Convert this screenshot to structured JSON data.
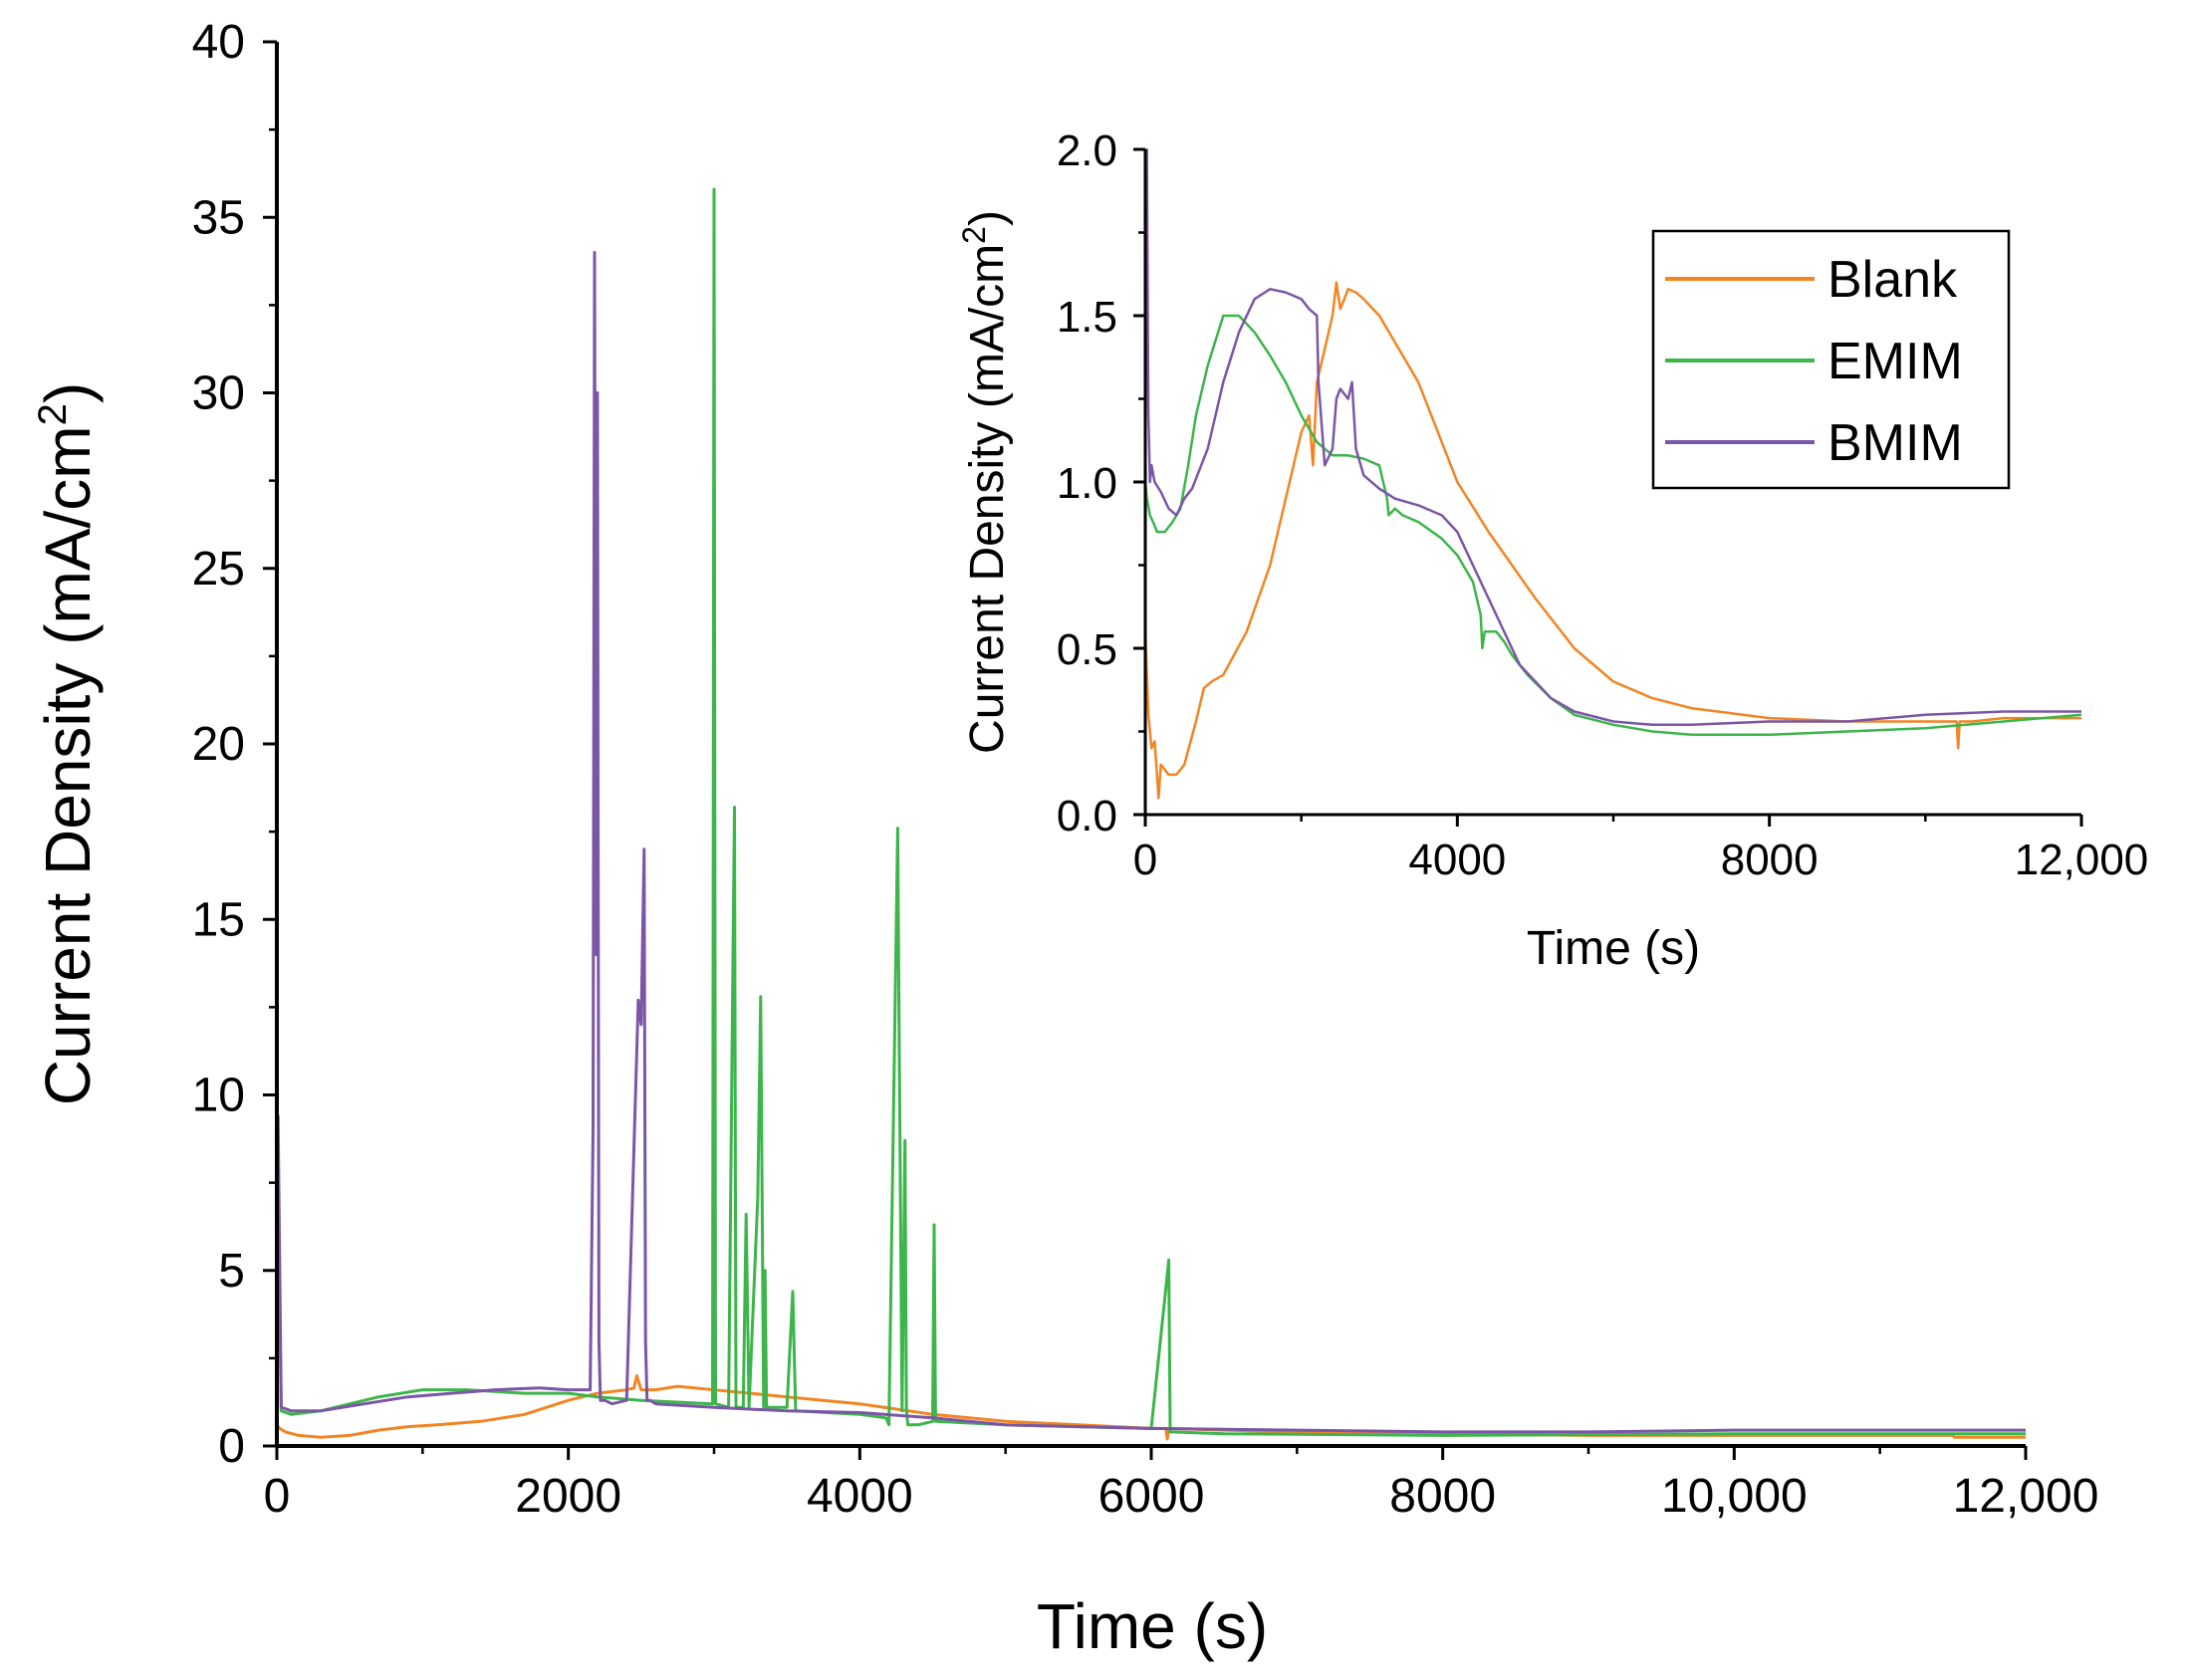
{
  "chart_data": [
    {
      "name": "main",
      "type": "line",
      "xlabel": "Time (s)",
      "ylabel": "Current Density (mA/cm",
      "ylabel_sup": "2",
      "ylabel_close": ")",
      "xlim": [
        0,
        12000
      ],
      "ylim": [
        0,
        40
      ],
      "xticks": [
        0,
        2000,
        4000,
        6000,
        8000,
        10000,
        12000
      ],
      "xtick_labels": [
        "0",
        "2000",
        "4000",
        "6000",
        "8000",
        "10,000",
        "12,000"
      ],
      "yticks": [
        0,
        5,
        10,
        15,
        20,
        25,
        30,
        35,
        40
      ],
      "ytick_labels": [
        "0",
        "5",
        "10",
        "15",
        "20",
        "25",
        "30",
        "35",
        "40"
      ],
      "series": [
        {
          "name": "Blank",
          "color": "#F28522",
          "x": [
            0,
            20,
            60,
            150,
            300,
            500,
            700,
            900,
            1100,
            1400,
            1700,
            2000,
            2200,
            2400,
            2450,
            2470,
            2500,
            2600,
            2750,
            3000,
            3500,
            4000,
            4500,
            5000,
            5500,
            6000,
            6100,
            6110,
            6120,
            6500,
            7000,
            8000,
            9000,
            10000,
            11000,
            11500,
            11510,
            12000
          ],
          "y": [
            0.6,
            0.5,
            0.4,
            0.3,
            0.25,
            0.3,
            0.45,
            0.55,
            0.6,
            0.7,
            0.9,
            1.3,
            1.5,
            1.6,
            1.65,
            2.0,
            1.6,
            1.6,
            1.7,
            1.6,
            1.4,
            1.2,
            0.9,
            0.7,
            0.6,
            0.5,
            0.5,
            0.2,
            0.5,
            0.45,
            0.4,
            0.35,
            0.3,
            0.3,
            0.3,
            0.3,
            0.25,
            0.25
          ]
        },
        {
          "name": "EMIM",
          "color": "#3CB54A",
          "x": [
            0,
            10,
            30,
            100,
            300,
            700,
            1000,
            1300,
            1700,
            2000,
            2200,
            2500,
            2990,
            3000,
            3010,
            3100,
            3140,
            3150,
            3160,
            3200,
            3220,
            3240,
            3300,
            3320,
            3340,
            3350,
            3360,
            3380,
            3500,
            3540,
            3560,
            4000,
            4180,
            4200,
            4260,
            4270,
            4290,
            4310,
            4320,
            4330,
            4400,
            4500,
            4510,
            4520,
            5000,
            6000,
            6120,
            6130,
            6140,
            6500,
            8000,
            10000,
            12000
          ],
          "y": [
            1.0,
            6.5,
            1.0,
            0.9,
            1.0,
            1.4,
            1.6,
            1.6,
            1.5,
            1.5,
            1.4,
            1.3,
            1.2,
            35.8,
            1.2,
            1.1,
            18.2,
            1.1,
            1.1,
            1.1,
            6.6,
            1.1,
            7.1,
            12.8,
            1.1,
            5.0,
            1.1,
            1.1,
            1.1,
            4.4,
            1.0,
            0.9,
            0.8,
            0.6,
            17.6,
            12.0,
            1.0,
            8.7,
            1.0,
            0.6,
            0.6,
            0.7,
            6.3,
            0.7,
            0.6,
            0.5,
            5.3,
            0.4,
            0.4,
            0.35,
            0.3,
            0.35,
            0.35
          ]
        },
        {
          "name": "BMIM",
          "color": "#7B56A6",
          "x": [
            0,
            8,
            30,
            100,
            300,
            600,
            900,
            1200,
            1500,
            1800,
            2000,
            2100,
            2150,
            2170,
            2180,
            2190,
            2200,
            2210,
            2220,
            2250,
            2300,
            2400,
            2480,
            2500,
            2520,
            2530,
            2540,
            2560,
            2600,
            3000,
            3500,
            4000,
            4500,
            5000,
            6000,
            7000,
            8000,
            9000,
            10000,
            11000,
            12000
          ],
          "y": [
            1.0,
            9.4,
            1.1,
            1.0,
            1.0,
            1.2,
            1.4,
            1.5,
            1.6,
            1.65,
            1.6,
            1.6,
            1.6,
            9.0,
            34.0,
            14.0,
            30.0,
            3.0,
            1.3,
            1.3,
            1.2,
            1.3,
            12.7,
            12.0,
            17.0,
            3.0,
            1.3,
            1.3,
            1.2,
            1.1,
            1.0,
            0.95,
            0.8,
            0.6,
            0.5,
            0.45,
            0.4,
            0.4,
            0.45,
            0.45,
            0.45
          ]
        }
      ]
    },
    {
      "name": "inset",
      "type": "line",
      "xlabel": "Time (s)",
      "ylabel": "Current Density (mA/cm",
      "ylabel_sup": "2",
      "ylabel_close": ")",
      "xlim": [
        0,
        12000
      ],
      "ylim": [
        0,
        2.0
      ],
      "xticks": [
        0,
        4000,
        8000,
        12000
      ],
      "xtick_labels": [
        "0",
        "4000",
        "8000",
        "12,000"
      ],
      "yticks": [
        0,
        0.5,
        1.0,
        1.5,
        2.0
      ],
      "ytick_labels": [
        "0.0",
        "0.5",
        "1.0",
        "1.5",
        "2.0"
      ],
      "legend": {
        "position": "top-right",
        "entries": [
          "Blank",
          "EMIM",
          "BMIM"
        ]
      },
      "series": [
        {
          "name": "Blank",
          "color": "#F28522",
          "x": [
            0,
            40,
            80,
            120,
            150,
            170,
            200,
            300,
            400,
            500,
            650,
            750,
            850,
            1000,
            1300,
            1600,
            1800,
            2000,
            2100,
            2150,
            2200,
            2300,
            2400,
            2450,
            2500,
            2550,
            2600,
            2700,
            2800,
            3000,
            3200,
            3500,
            3800,
            4000,
            4400,
            5000,
            5500,
            6000,
            6500,
            7000,
            8000,
            9000,
            10000,
            10400,
            10420,
            10440,
            10600,
            11000,
            11500,
            12000
          ],
          "y": [
            0.55,
            0.3,
            0.2,
            0.22,
            0.12,
            0.05,
            0.15,
            0.12,
            0.12,
            0.15,
            0.28,
            0.38,
            0.4,
            0.42,
            0.55,
            0.75,
            0.95,
            1.15,
            1.2,
            1.05,
            1.3,
            1.4,
            1.5,
            1.6,
            1.52,
            1.55,
            1.58,
            1.57,
            1.55,
            1.5,
            1.42,
            1.3,
            1.12,
            1.0,
            0.85,
            0.65,
            0.5,
            0.4,
            0.35,
            0.32,
            0.29,
            0.28,
            0.28,
            0.28,
            0.2,
            0.28,
            0.28,
            0.29,
            0.29,
            0.29
          ]
        },
        {
          "name": "EMIM",
          "color": "#3CB54A",
          "x": [
            0,
            20,
            60,
            100,
            150,
            250,
            350,
            450,
            550,
            650,
            800,
            1000,
            1200,
            1400,
            1600,
            1800,
            2000,
            2200,
            2400,
            2600,
            2800,
            3000,
            3100,
            3120,
            3200,
            3300,
            3500,
            3800,
            4000,
            4200,
            4300,
            4320,
            4350,
            4400,
            4500,
            4600,
            4700,
            4900,
            5200,
            5500,
            6000,
            6500,
            7000,
            7500,
            8000,
            9000,
            10000,
            11000,
            12000
          ],
          "y": [
            1.0,
            0.95,
            0.9,
            0.88,
            0.85,
            0.85,
            0.88,
            0.92,
            1.05,
            1.2,
            1.35,
            1.5,
            1.5,
            1.45,
            1.38,
            1.3,
            1.2,
            1.12,
            1.08,
            1.08,
            1.07,
            1.05,
            0.95,
            0.9,
            0.92,
            0.9,
            0.88,
            0.83,
            0.78,
            0.7,
            0.6,
            0.5,
            0.55,
            0.55,
            0.55,
            0.52,
            0.48,
            0.42,
            0.35,
            0.3,
            0.27,
            0.25,
            0.24,
            0.24,
            0.24,
            0.25,
            0.26,
            0.28,
            0.3
          ]
        },
        {
          "name": "BMIM",
          "color": "#7B56A6",
          "x": [
            0,
            20,
            40,
            60,
            80,
            120,
            200,
            300,
            400,
            500,
            600,
            800,
            1000,
            1200,
            1400,
            1600,
            1800,
            2000,
            2100,
            2200,
            2220,
            2300,
            2400,
            2450,
            2500,
            2600,
            2650,
            2700,
            2800,
            3000,
            3200,
            3500,
            3800,
            4000,
            4300,
            4500,
            4800,
            5000,
            5200,
            5500,
            6000,
            6500,
            7000,
            8000,
            9000,
            10000,
            11000,
            12000
          ],
          "y": [
            1.0,
            2.0,
            1.2,
            1.0,
            1.05,
            1.0,
            0.97,
            0.92,
            0.9,
            0.95,
            0.98,
            1.1,
            1.3,
            1.45,
            1.55,
            1.58,
            1.57,
            1.55,
            1.52,
            1.5,
            1.3,
            1.05,
            1.1,
            1.25,
            1.28,
            1.25,
            1.3,
            1.1,
            1.02,
            0.98,
            0.95,
            0.93,
            0.9,
            0.85,
            0.7,
            0.6,
            0.45,
            0.4,
            0.35,
            0.31,
            0.28,
            0.27,
            0.27,
            0.28,
            0.28,
            0.3,
            0.31,
            0.31
          ]
        }
      ]
    }
  ]
}
